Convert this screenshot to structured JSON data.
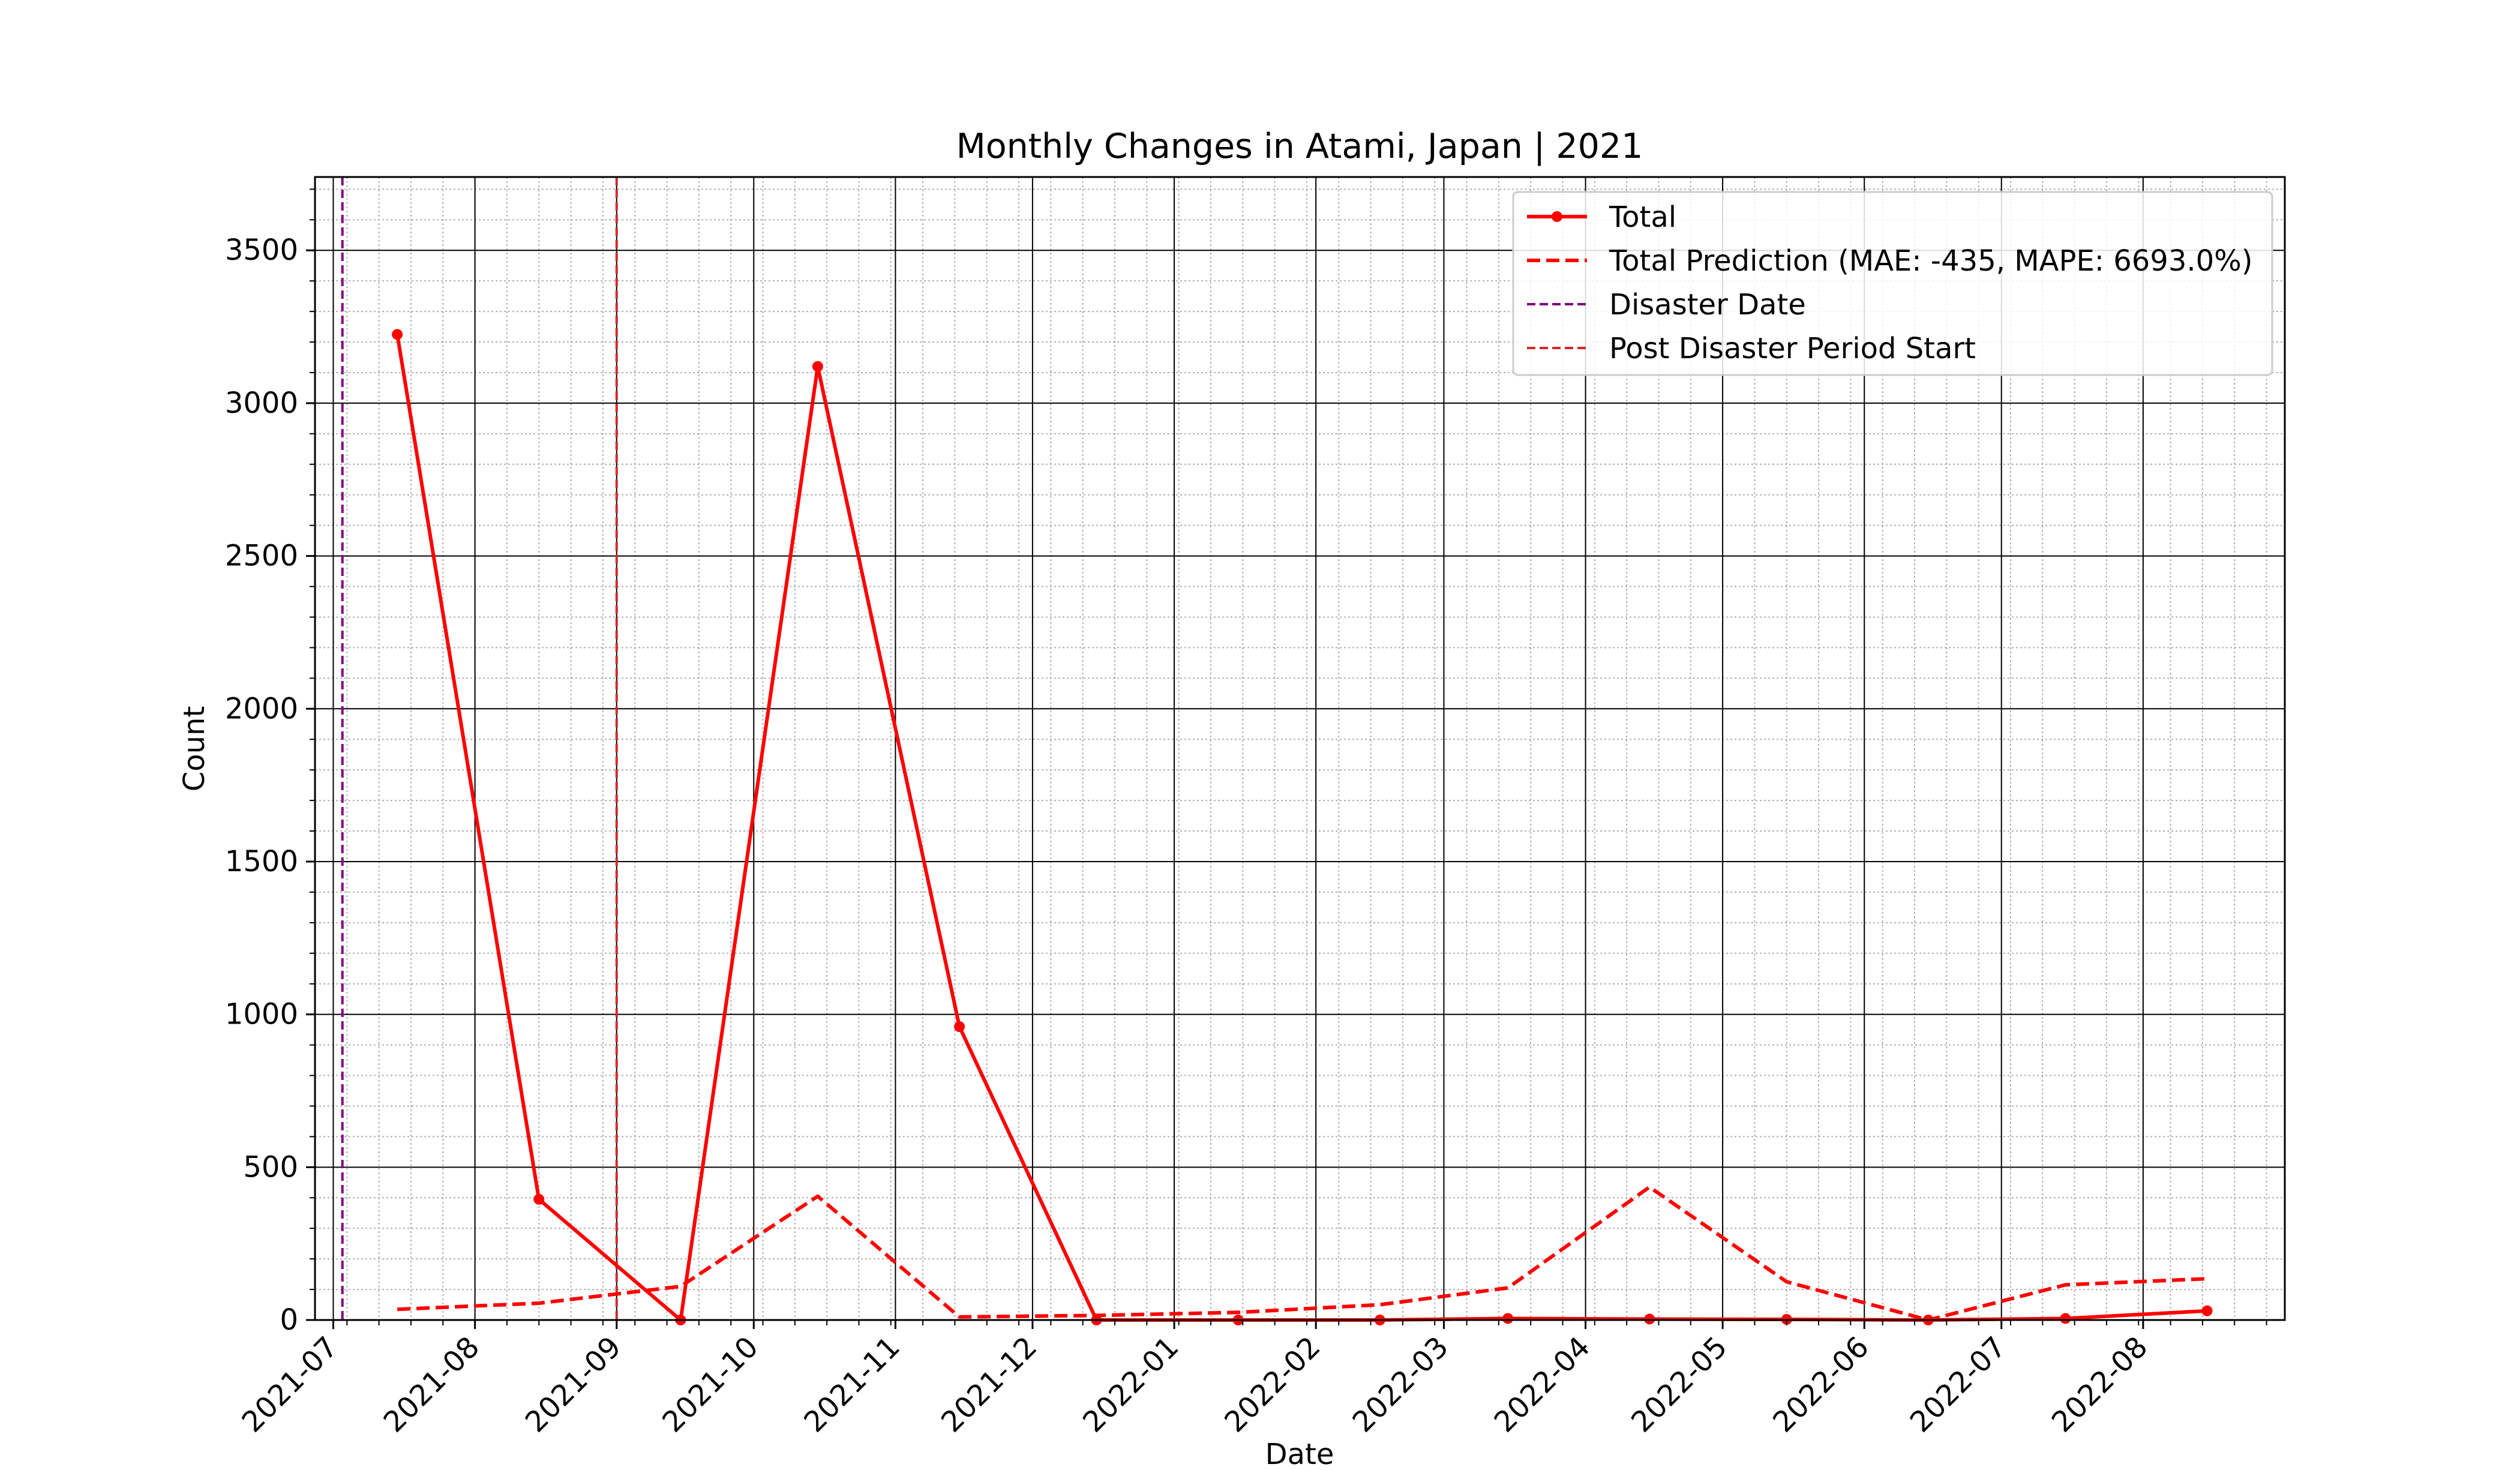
{
  "chart_data": {
    "type": "line",
    "title": "Monthly Changes in Atami, Japan | 2021",
    "xlabel": "Date",
    "ylabel": "Count",
    "x_tick_labels": [
      "2021-07",
      "2021-08",
      "2021-09",
      "2021-10",
      "2021-11",
      "2021-12",
      "2022-01",
      "2022-02",
      "2022-03",
      "2022-04",
      "2022-05",
      "2022-06",
      "2022-07",
      "2022-08"
    ],
    "y_ticks": [
      0,
      500,
      1000,
      1500,
      2000,
      2500,
      3000,
      3500
    ],
    "xlim": [
      "2021-06-27",
      "2022-09-01"
    ],
    "ylim": [
      0,
      3740
    ],
    "grid": true,
    "legend_position": "top-right",
    "series": [
      {
        "name": "Total",
        "style": "solid-with-markers",
        "color": "#ff0000",
        "x": [
          "2021-07-15",
          "2021-08-15",
          "2021-09-15",
          "2021-10-15",
          "2021-11-15",
          "2021-12-15",
          "2022-01-15",
          "2022-02-15",
          "2022-03-15",
          "2022-04-15",
          "2022-05-15",
          "2022-06-15",
          "2022-07-15",
          "2022-08-15"
        ],
        "values": [
          3225,
          395,
          0,
          3120,
          960,
          0,
          0,
          0,
          5,
          3,
          2,
          0,
          5,
          30
        ]
      },
      {
        "name": "Total Prediction (MAE: -435, MAPE: 6693.0%)",
        "style": "dashed",
        "color": "#ff0000",
        "x": [
          "2021-07-15",
          "2021-08-15",
          "2021-09-15",
          "2021-10-15",
          "2021-11-15",
          "2021-12-15",
          "2022-01-15",
          "2022-02-15",
          "2022-03-15",
          "2022-04-15",
          "2022-05-15",
          "2022-06-15",
          "2022-07-15",
          "2022-08-15"
        ],
        "values": [
          35,
          55,
          110,
          405,
          10,
          15,
          25,
          50,
          105,
          435,
          125,
          0,
          115,
          135
        ]
      }
    ],
    "vlines": [
      {
        "name": "Disaster Date",
        "x": "2021-07-03",
        "color": "#800080"
      },
      {
        "name": "Post Disaster Period Start",
        "x": "2021-09-01",
        "color": "#d62728"
      }
    ]
  }
}
